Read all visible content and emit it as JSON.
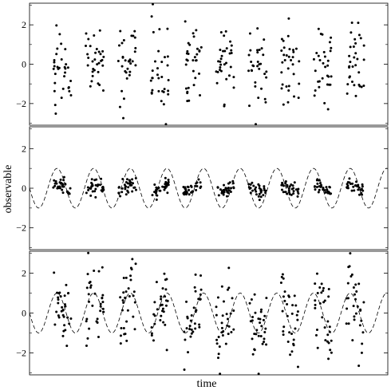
{
  "chart_data": {
    "type": "scatter",
    "xlabel": "time",
    "ylabel": "observable",
    "ylim": [
      -3.1,
      3.1
    ],
    "yticks": [
      -2,
      0,
      2
    ],
    "grid": false,
    "legend": "none",
    "clusters_x": [
      1.0,
      2.0,
      3.0,
      4.0,
      5.0,
      6.0,
      7.0,
      8.0,
      9.0,
      10.0
    ],
    "xlim": [
      0.0,
      11.0
    ],
    "wave_period": 1.125,
    "wave_phase": 0.0,
    "panels": [
      {
        "name": "panel-top",
        "show_curve": false,
        "spread_scale": 1.0,
        "noise_sd": 1.0
      },
      {
        "name": "panel-middle",
        "show_curve": true,
        "curve_amplitude": 1.0,
        "spread_scale": 1.0,
        "noise_sd": 0.2
      },
      {
        "name": "panel-bottom",
        "show_curve": true,
        "curve_amplitude": 1.0,
        "spread_scale": 1.0,
        "noise_sd": 1.0
      }
    ]
  }
}
